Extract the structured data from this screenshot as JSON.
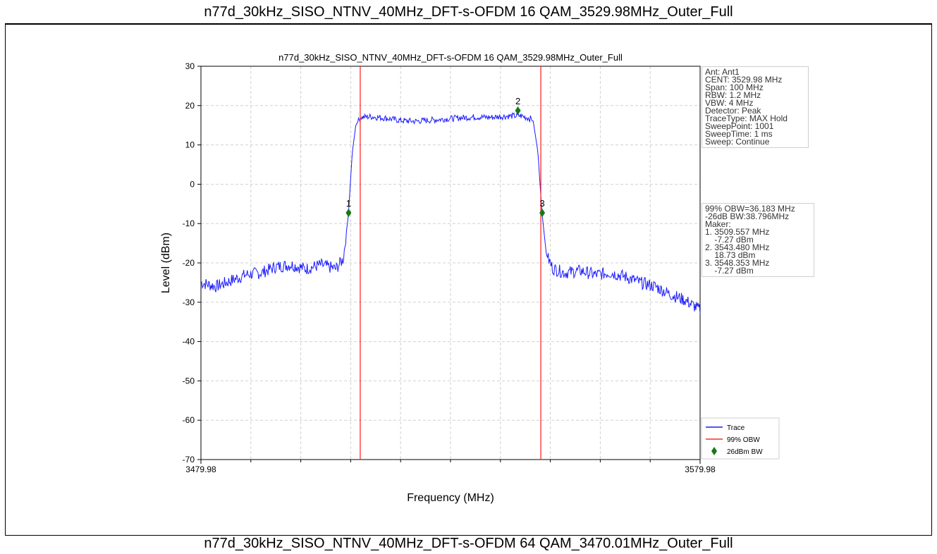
{
  "captions": {
    "top": "n77d_30kHz_SISO_NTNV_40MHz_DFT-s-OFDM 16 QAM_3529.98MHz_Outer_Full",
    "bottom": "n77d_30kHz_SISO_NTNV_40MHz_DFT-s-OFDM 64 QAM_3470.01MHz_Outer_Full"
  },
  "info_panel": [
    "Ant: Ant1",
    "CENT: 3529.98 MHz",
    "Span: 100 MHz",
    "RBW: 1.2 MHz",
    "VBW: 4 MHz",
    "Detector: Peak",
    "TraceType: MAX Hold",
    "SweepPoint: 1001",
    "SweepTime: 1 ms",
    "Sweep: Continue"
  ],
  "results_panel": [
    "99% OBW=36.183 MHz",
    "-26dB BW:38.796MHz",
    "Maker:",
    "1. 3509.557 MHz",
    "    -7.27 dBm",
    "2. 3543.480 MHz",
    "    18.73 dBm",
    "3. 3548.353 MHz",
    "    -7.27 dBm"
  ],
  "colors": {
    "trace": "#1a1aff",
    "obw": "#ff2a2a",
    "marker": "#157a15"
  },
  "chart_data": {
    "type": "line",
    "title": "n77d_30kHz_SISO_NTNV_40MHz_DFT-s-OFDM 16 QAM_3529.98MHz_Outer_Full",
    "xlabel": "Frequency (MHz)",
    "ylabel": "Level (dBm)",
    "xlim": [
      3479.98,
      3579.98
    ],
    "ylim": [
      -70,
      30
    ],
    "x_tick_labels": [
      "3479.98",
      "3579.98"
    ],
    "y_ticks": [
      30,
      20,
      10,
      0,
      -10,
      -20,
      -30,
      -40,
      -50,
      -60,
      -70
    ],
    "grid": true,
    "legend": {
      "placement": "bottom-right",
      "entries": [
        "Trace",
        "99% OBW",
        "26dBm BW"
      ]
    },
    "series": [
      {
        "name": "Trace",
        "x": [
          3479.98,
          3483,
          3486,
          3489,
          3492,
          3495,
          3498,
          3501,
          3504,
          3507,
          3508.5,
          3509.5,
          3510.3,
          3511,
          3512,
          3514,
          3517,
          3520,
          3523,
          3526,
          3529,
          3532,
          3535,
          3538,
          3541,
          3544,
          3546.5,
          3547.5,
          3548.3,
          3549.2,
          3550.5,
          3553,
          3556,
          3559,
          3562,
          3565,
          3568,
          3571,
          3574,
          3577,
          3579.98
        ],
        "y": [
          -25,
          -26,
          -24.5,
          -23,
          -22.5,
          -21,
          -20.5,
          -21.5,
          -20.5,
          -21.5,
          -19,
          -8,
          8,
          15,
          17,
          17.2,
          16.8,
          16.2,
          16,
          16.3,
          16.6,
          16.9,
          17.1,
          17,
          17.3,
          17.4,
          16.5,
          8,
          -7.3,
          -18,
          -21.5,
          -22.5,
          -22,
          -23,
          -22.5,
          -23.5,
          -25,
          -26,
          -28,
          -29.5,
          -32
        ]
      }
    ],
    "obw_lines_x": [
      3511.89,
      3548.07
    ],
    "markers": [
      {
        "label": "1",
        "x": 3509.557,
        "y": -7.27
      },
      {
        "label": "2",
        "x": 3543.48,
        "y": 18.73
      },
      {
        "label": "3",
        "x": 3548.353,
        "y": -7.27
      }
    ]
  }
}
